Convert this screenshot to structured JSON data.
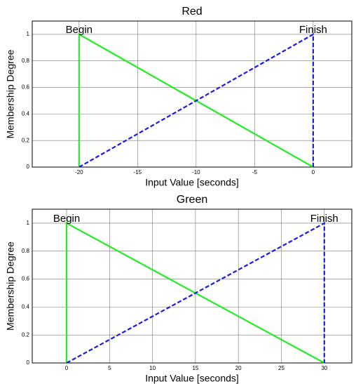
{
  "chart_data": [
    {
      "type": "line",
      "title": "Red",
      "xlabel": "Input Value [seconds]",
      "ylabel": "Membership Degree",
      "xlim": [
        -24,
        3.3
      ],
      "xticks": [
        -20,
        -15,
        -10,
        -5,
        0
      ],
      "ylim": [
        0,
        1.1
      ],
      "yticks": [
        0,
        0.2,
        0.4,
        0.6,
        0.8,
        1
      ],
      "grid": true,
      "series": [
        {
          "color": "#22ee22",
          "style": "solid",
          "x": [
            -20,
            -20,
            0
          ],
          "values": [
            0,
            1,
            0
          ]
        },
        {
          "color": "#1a1aee",
          "style": "dashed",
          "x": [
            -20,
            0,
            0
          ],
          "values": [
            0,
            1,
            0
          ]
        }
      ],
      "annotations": [
        {
          "text": "Begin",
          "x": -20,
          "y": 1
        },
        {
          "text": "Finish",
          "x": 0,
          "y": 1
        }
      ]
    },
    {
      "type": "line",
      "title": "Green",
      "xlabel": "Input Value [seconds]",
      "ylabel": "Membership Degree",
      "xlim": [
        -4,
        33.2
      ],
      "xticks": [
        0,
        5,
        10,
        15,
        20,
        25,
        30
      ],
      "ylim": [
        0,
        1.1
      ],
      "yticks": [
        0,
        0.2,
        0.4,
        0.6,
        0.8,
        1
      ],
      "grid": true,
      "series": [
        {
          "color": "#22ee22",
          "style": "solid",
          "x": [
            0,
            0,
            30
          ],
          "values": [
            0,
            1,
            0
          ]
        },
        {
          "color": "#1a1aee",
          "style": "dashed",
          "x": [
            0,
            30,
            30
          ],
          "values": [
            0,
            1,
            0
          ]
        }
      ],
      "annotations": [
        {
          "text": "Begin",
          "x": 0,
          "y": 1
        },
        {
          "text": "Finish",
          "x": 30,
          "y": 1
        }
      ]
    }
  ]
}
